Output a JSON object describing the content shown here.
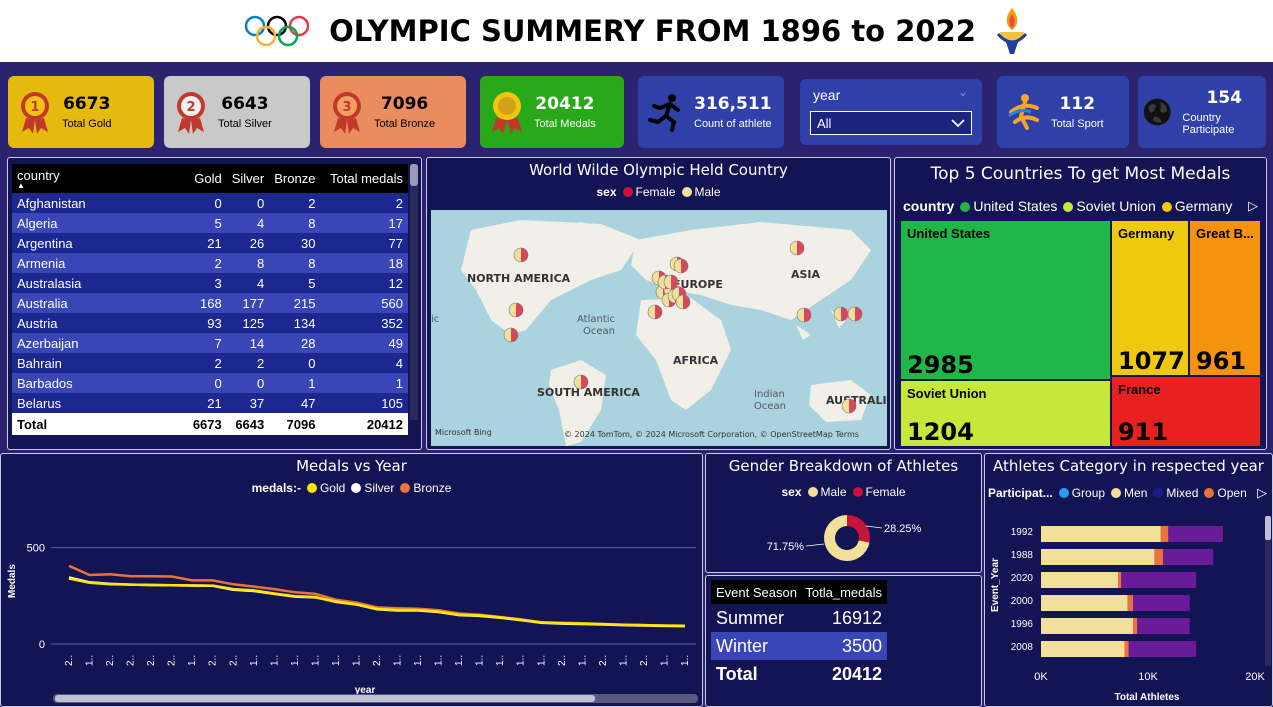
{
  "header": {
    "title": "OLYMPIC SUMMERY FROM 1896 to 2022"
  },
  "kpis": [
    {
      "value": "6673",
      "label": "Total Gold"
    },
    {
      "value": "6643",
      "label": "Total Silver"
    },
    {
      "value": "7096",
      "label": "Total Bronze"
    },
    {
      "value": "20412",
      "label": "Total Medals"
    },
    {
      "value": "316,511",
      "label": "Count of athlete"
    },
    {
      "value": "112",
      "label": "Total Sport"
    },
    {
      "value": "154",
      "label": "Country Participate"
    }
  ],
  "filter": {
    "label": "year",
    "value": "All"
  },
  "country_table": {
    "headers": [
      "country",
      "Gold",
      "Silver",
      "Bronze",
      "Total medals"
    ],
    "rows": [
      [
        "Afghanistan",
        "0",
        "0",
        "2",
        "2"
      ],
      [
        "Algeria",
        "5",
        "4",
        "8",
        "17"
      ],
      [
        "Argentina",
        "21",
        "26",
        "30",
        "77"
      ],
      [
        "Armenia",
        "2",
        "8",
        "8",
        "18"
      ],
      [
        "Australasia",
        "3",
        "4",
        "5",
        "12"
      ],
      [
        "Australia",
        "168",
        "177",
        "215",
        "560"
      ],
      [
        "Austria",
        "93",
        "125",
        "134",
        "352"
      ],
      [
        "Azerbaijan",
        "7",
        "14",
        "28",
        "49"
      ],
      [
        "Bahrain",
        "2",
        "2",
        "0",
        "4"
      ],
      [
        "Barbados",
        "0",
        "0",
        "1",
        "1"
      ],
      [
        "Belarus",
        "21",
        "37",
        "47",
        "105"
      ]
    ],
    "total": [
      "Total",
      "6673",
      "6643",
      "7096",
      "20412"
    ]
  },
  "map": {
    "title": "World Wilde Olympic Held Country",
    "legend_title": "sex",
    "legend": [
      "Female",
      "Male"
    ],
    "labels": {
      "na": "NORTH AMERICA",
      "eu": "EUROPE",
      "as": "ASIA",
      "af": "AFRICA",
      "sa": "SOUTH AMERICA",
      "au": "AUSTRALIA",
      "atl1": "Atlantic",
      "atl2": "Ocean",
      "ind1": "Indian",
      "ind2": "Ocean",
      "pac": "ic"
    },
    "attribution": "© 2024 TomTom, © 2024 Microsoft Corporation, © OpenStreetMap  Terms",
    "brand": "Microsoft Bing"
  },
  "treemap": {
    "title": "Top 5 Countries To get Most Medals",
    "legend_title": "country",
    "legend": [
      "United States",
      "Soviet Union",
      "Germany"
    ],
    "cells": [
      {
        "name": "United States",
        "value": "2985",
        "color": "#1fb848"
      },
      {
        "name": "Soviet Union",
        "value": "1204",
        "color": "#c5e83a"
      },
      {
        "name": "Germany",
        "value": "1077",
        "color": "#efc90d"
      },
      {
        "name": "Great B...",
        "value": "961",
        "color": "#f5920e"
      },
      {
        "name": "France",
        "value": "911",
        "color": "#e82020"
      }
    ]
  },
  "line_chart": {
    "title": "Medals vs Year",
    "legend_title": "medals:-",
    "ylabel": "Medals",
    "xlabel": "year",
    "yticks": [
      "500",
      "0"
    ],
    "xticks": [
      "2..",
      "1..",
      "2..",
      "2..",
      "2..",
      "2..",
      "1..",
      "2..",
      "2..",
      "1..",
      "1..",
      "1..",
      "1..",
      "1..",
      "1..",
      "2..",
      "1..",
      "1..",
      "1..",
      "1..",
      "1..",
      "1..",
      "1..",
      "1..",
      "2..",
      "1..",
      "2..",
      "1..",
      "2..",
      "1..",
      "1.."
    ]
  },
  "chart_data": [
    {
      "type": "line",
      "title": "Medals vs Year",
      "xlabel": "year",
      "ylabel": "Medals",
      "ylim": [
        0,
        550
      ],
      "series": [
        {
          "name": "Gold",
          "color": "#ffe600",
          "values": [
            340,
            318,
            310,
            308,
            306,
            305,
            304,
            303,
            285,
            278,
            262,
            248,
            244,
            218,
            205,
            182,
            176,
            176,
            168,
            152,
            148,
            138,
            125,
            112,
            108,
            106,
            103,
            100,
            98,
            96,
            95
          ]
        },
        {
          "name": "Silver",
          "color": "#ffffff",
          "values": [
            345,
            320,
            312,
            308,
            306,
            305,
            303,
            302,
            282,
            275,
            260,
            246,
            242,
            220,
            205,
            180,
            174,
            174,
            166,
            150,
            146,
            136,
            124,
            110,
            106,
            104,
            101,
            98,
            96,
            94,
            93
          ]
        },
        {
          "name": "Bronze",
          "color": "#e8743b",
          "values": [
            405,
            358,
            362,
            352,
            352,
            350,
            330,
            330,
            310,
            298,
            285,
            268,
            260,
            230,
            215,
            190,
            185,
            183,
            175,
            158,
            152,
            140,
            128,
            112,
            110,
            108,
            104,
            100,
            98,
            95,
            94
          ]
        }
      ],
      "legend": "top-center"
    },
    {
      "type": "pie",
      "title": "Gender Breakdown of Athletes",
      "slices": [
        {
          "name": "Male",
          "value": 71.75,
          "color": "#f2df9a"
        },
        {
          "name": "Female",
          "value": 28.25,
          "color": "#c8133a"
        }
      ]
    },
    {
      "type": "bar",
      "title": "Athletes Category in respected year",
      "xlabel": "Total Athletes",
      "ylabel": "Event_Year",
      "xlim": [
        0,
        20000
      ],
      "categories": [
        "1992",
        "1988",
        "2020",
        "2000",
        "1996",
        "2008"
      ],
      "series": [
        {
          "name": "Men",
          "color": "#f2df9a",
          "values": [
            11200,
            10600,
            7200,
            8100,
            8600,
            7800
          ]
        },
        {
          "name": "Open",
          "color": "#e8743b",
          "values": [
            700,
            800,
            300,
            500,
            400,
            400
          ]
        },
        {
          "name": "Mixed",
          "color": "#6a1b9a",
          "values": [
            5100,
            4700,
            7000,
            5300,
            4900,
            6300
          ]
        }
      ]
    }
  ],
  "gender": {
    "title": "Gender Breakdown of Athletes",
    "legend_title": "sex",
    "legend": [
      "Male",
      "Female"
    ],
    "male_pct": "71.75%",
    "female_pct": "28.25%"
  },
  "season_table": {
    "headers": [
      "Event Season",
      "Totla_medals"
    ],
    "rows": [
      [
        "Summer",
        "16912"
      ],
      [
        "Winter",
        "3500"
      ]
    ],
    "total": [
      "Total",
      "20412"
    ]
  },
  "bar_chart": {
    "title": "Athletes Category in respected year",
    "legend_title": "Participat...",
    "legend": [
      "Group",
      "Men",
      "Mixed",
      "Open"
    ],
    "xticks": [
      "0K",
      "10K",
      "20K"
    ],
    "xlabel": "Total Athletes",
    "ylabel": "Event_Year"
  }
}
